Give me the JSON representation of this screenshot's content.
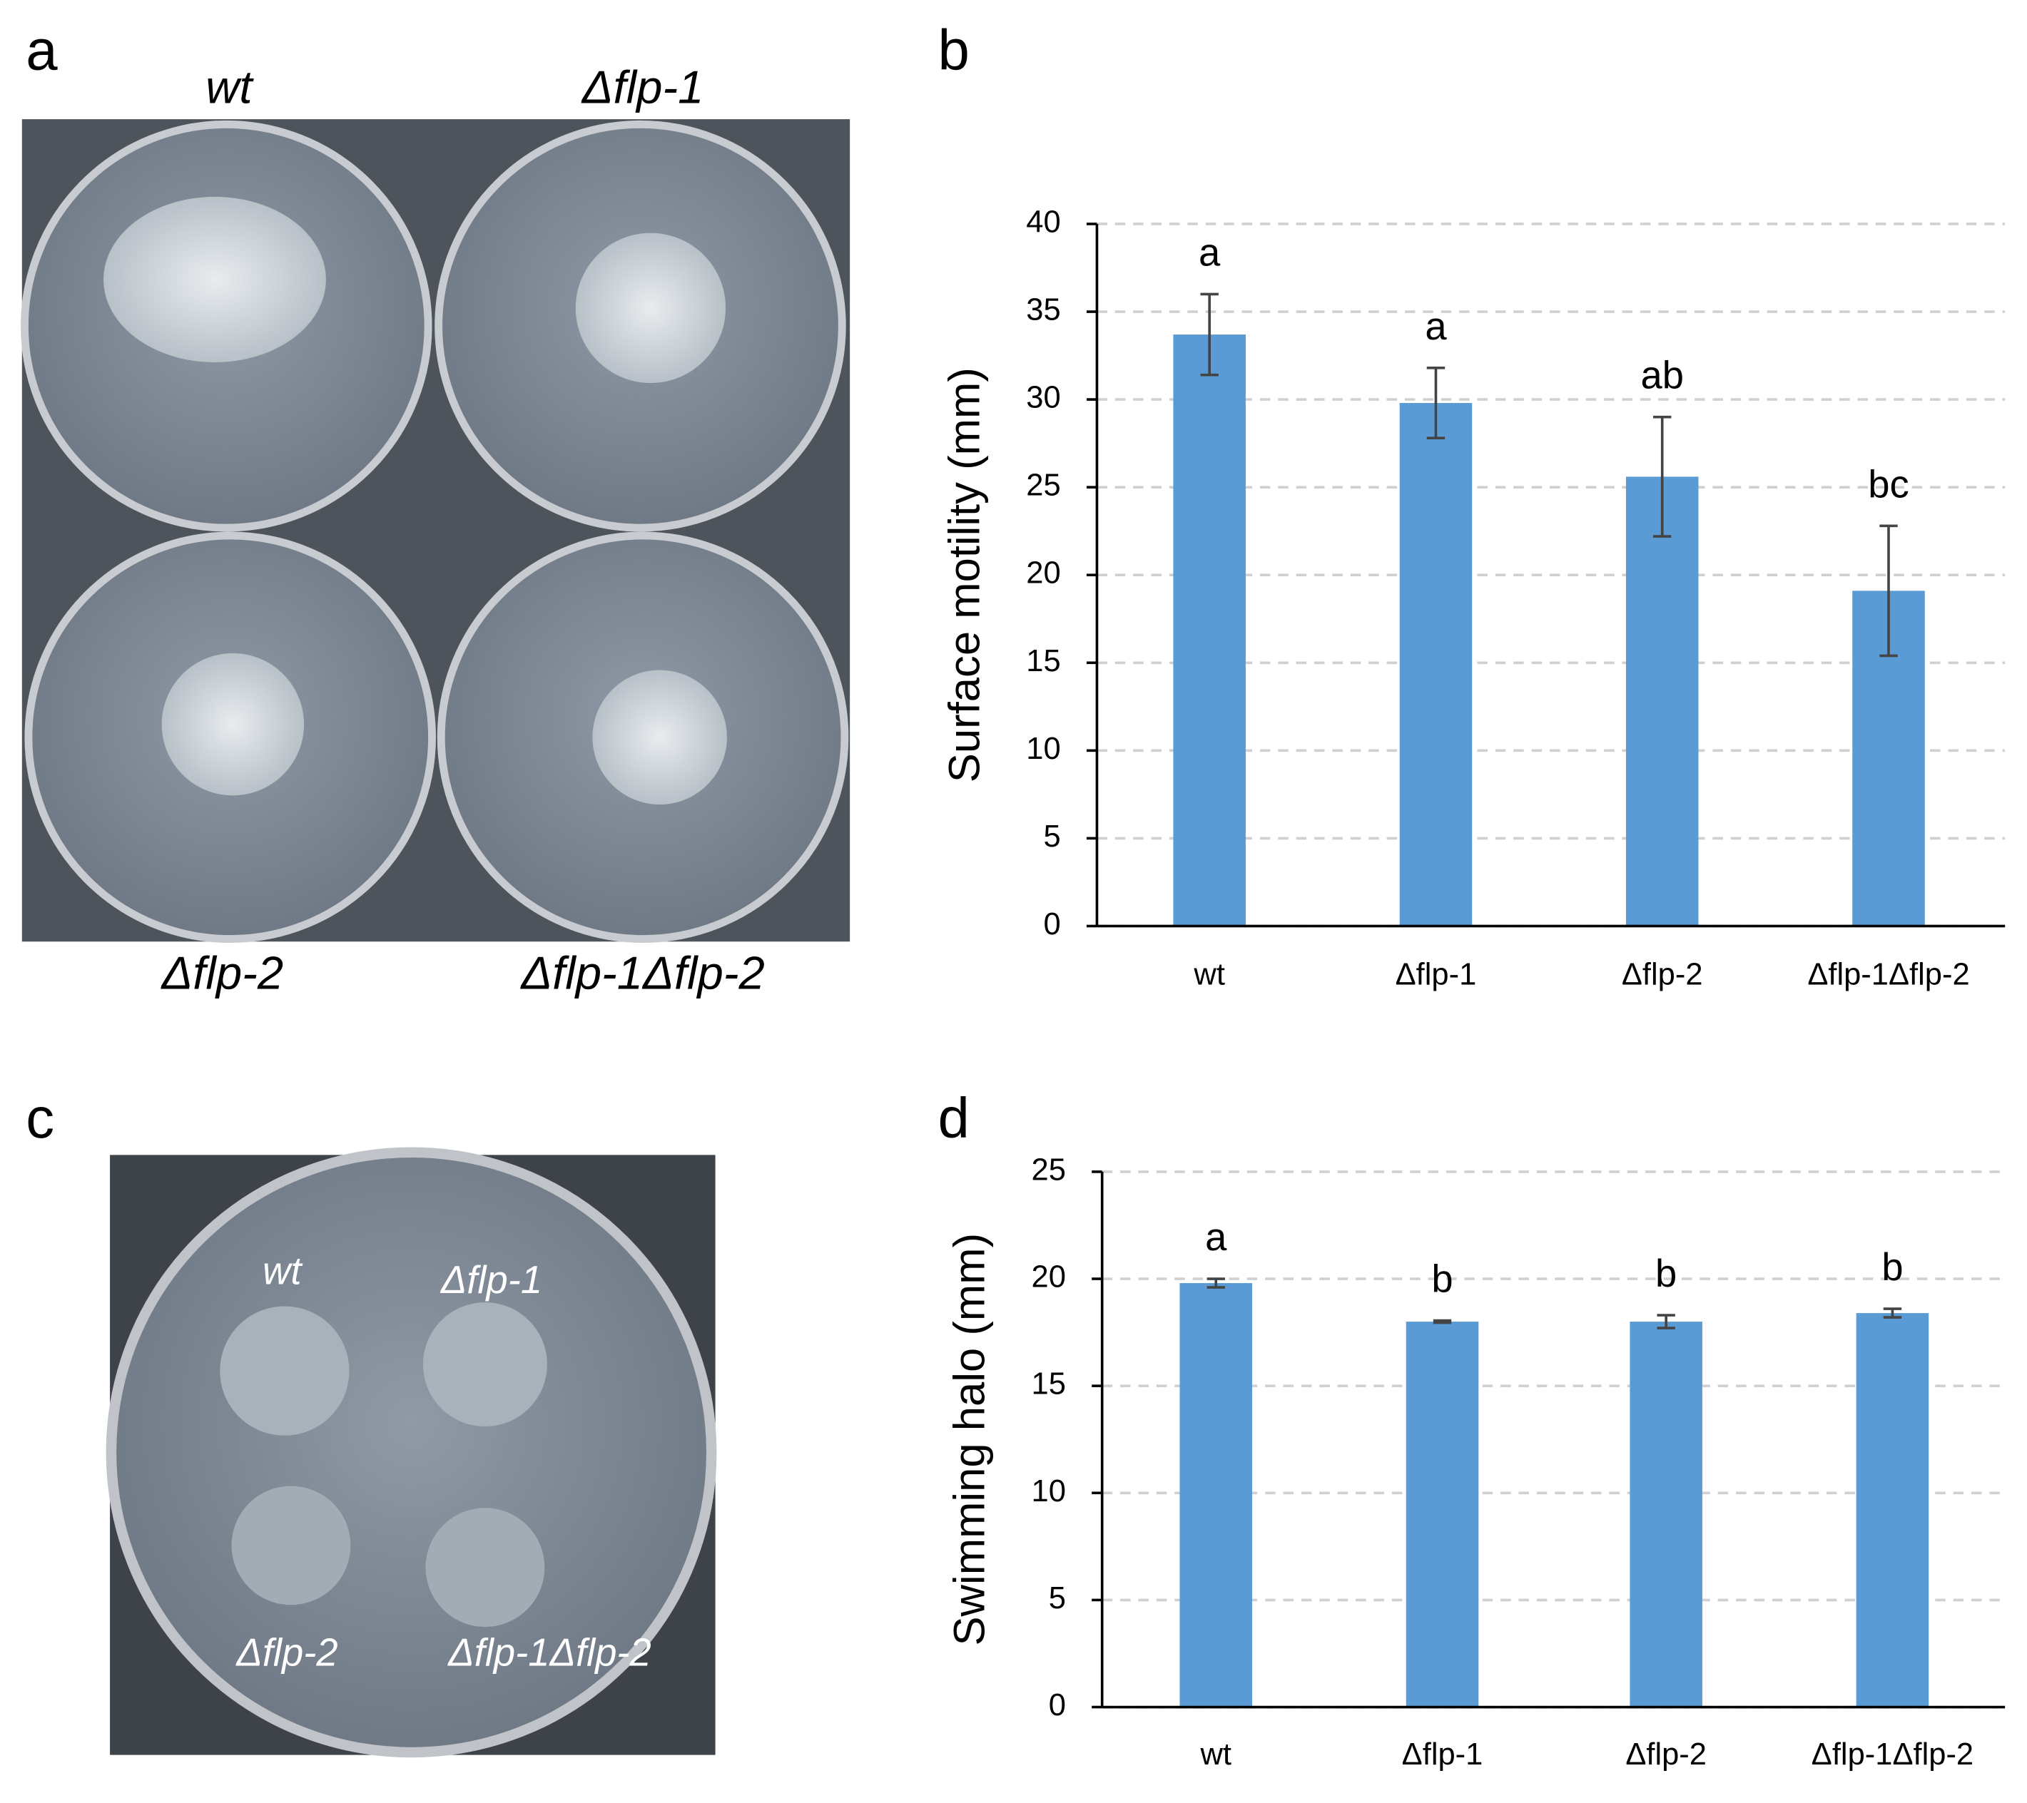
{
  "panels": {
    "a": {
      "label": "a",
      "plates": [
        "wt",
        "Δflp-1",
        "Δflp-2",
        "Δflp-1Δflp-2"
      ]
    },
    "b": {
      "label": "b"
    },
    "c": {
      "label": "c",
      "plates": [
        "wt",
        "Δflp-1",
        "Δflp-2",
        "Δflp-1Δflp-2"
      ]
    },
    "d": {
      "label": "d"
    }
  },
  "chart_data": [
    {
      "type": "bar",
      "y_label": "Surface motility (mm)",
      "categories": [
        "wt",
        "Δflp-1",
        "Δflp-2",
        "Δflp-1Δflp-2"
      ],
      "values": [
        33.7,
        29.8,
        25.6,
        19.1
      ],
      "errors": [
        2.3,
        2.0,
        3.4,
        3.7
      ],
      "annotations": [
        "a",
        "a",
        "ab",
        "bc"
      ],
      "color": "#5b9bd5",
      "ylim": [
        0,
        40
      ],
      "yticks": [
        0,
        5,
        10,
        15,
        20,
        25,
        30,
        35,
        40
      ],
      "grid": true
    },
    {
      "type": "bar",
      "y_label": "Swimming halo (mm)",
      "categories": [
        "wt",
        "Δflp-1",
        "Δflp-2",
        "Δflp-1Δflp-2"
      ],
      "values": [
        19.8,
        18.0,
        18.0,
        18.4
      ],
      "errors": [
        0.2,
        0.05,
        0.3,
        0.2
      ],
      "annotations": [
        "a",
        "b",
        "b",
        "b"
      ],
      "color": "#5b9bd5",
      "ylim": [
        0,
        25
      ],
      "yticks": [
        0,
        5,
        10,
        15,
        20,
        25
      ],
      "grid": true
    }
  ]
}
